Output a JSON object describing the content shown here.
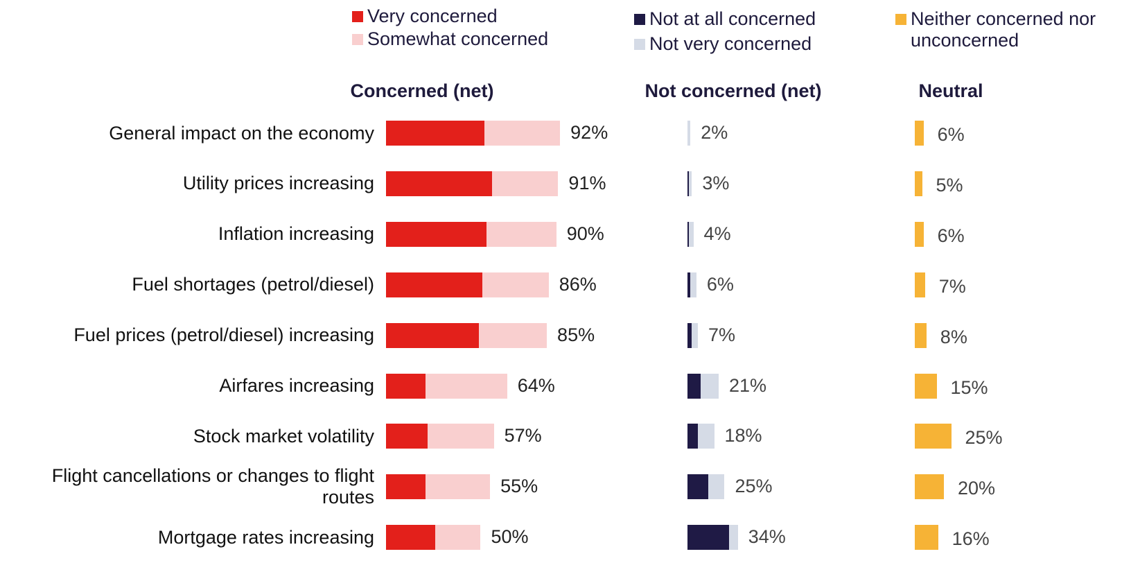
{
  "chart_data": [
    {
      "type": "stacked-bar",
      "title": "Concerned (net)",
      "categories": [
        "General impact on the economy",
        "Utility prices increasing",
        "Inflation increasing",
        "Fuel shortages (petrol/diesel)",
        "Fuel prices (petrol/diesel) increasing",
        "Airfares increasing",
        "Stock market volatility",
        "Flight cancellations or changes to flight routes",
        "Mortgage rates increasing"
      ],
      "xlim": [
        0,
        100
      ],
      "series": [
        {
          "name": "Very concerned",
          "color": "#e3201b",
          "values": [
            52,
            56,
            53,
            51,
            49,
            21,
            22,
            21,
            26
          ]
        },
        {
          "name": "Somewhat concerned",
          "color": "#f9cfcf",
          "values": [
            40,
            35,
            37,
            35,
            36,
            43,
            35,
            34,
            24
          ]
        }
      ],
      "totals": [
        92,
        91,
        90,
        86,
        85,
        64,
        57,
        55,
        50
      ],
      "total_labels": [
        "92%",
        "91%",
        "90%",
        "86%",
        "85%",
        "64%",
        "57%",
        "55%",
        "50%"
      ]
    },
    {
      "type": "stacked-bar",
      "title": "Not concerned (net)",
      "xlim": [
        0,
        100
      ],
      "series": [
        {
          "name": "Not at all concerned",
          "color": "#1f1a45",
          "values": [
            0,
            1,
            1,
            2,
            3,
            9,
            7,
            14,
            28
          ]
        },
        {
          "name": "Not very concerned",
          "color": "#d5dbe6",
          "values": [
            2,
            2,
            3,
            4,
            4,
            12,
            11,
            11,
            6
          ]
        }
      ],
      "totals": [
        2,
        3,
        4,
        6,
        7,
        21,
        18,
        25,
        34
      ],
      "total_labels": [
        "2%",
        "3%",
        "4%",
        "6%",
        "7%",
        "21%",
        "18%",
        "25%",
        "34%"
      ]
    },
    {
      "type": "bar",
      "title": "Neutral",
      "xlim": [
        0,
        100
      ],
      "series": [
        {
          "name": "Neither concerned nor unconcerned",
          "color": "#f6b336",
          "values": [
            6,
            5,
            6,
            7,
            8,
            15,
            25,
            20,
            16
          ],
          "value_labels": [
            "6%",
            "5%",
            "6%",
            "7%",
            "8%",
            "15%",
            "25%",
            "20%",
            "16%"
          ]
        }
      ]
    }
  ]
}
